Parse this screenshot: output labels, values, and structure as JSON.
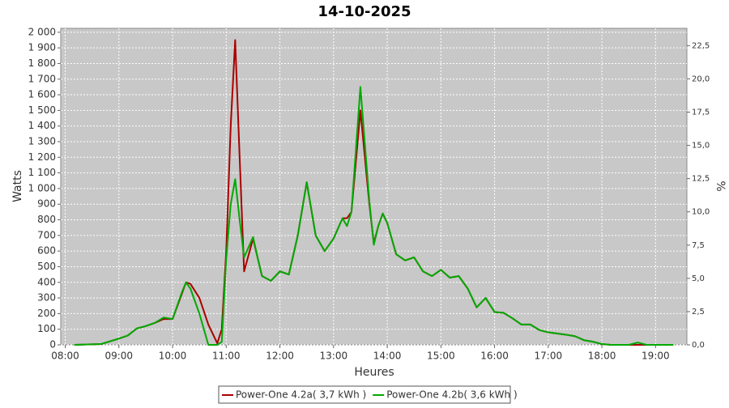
{
  "chart_data": {
    "type": "line",
    "title": "14-10-2025",
    "x_label": "Heures",
    "y_label": "Watts",
    "y2_label": "%",
    "x": [
      "08:10",
      "08:40",
      "09:00",
      "09:10",
      "09:20",
      "09:30",
      "09:40",
      "09:50",
      "10:00",
      "10:10",
      "10:15",
      "10:20",
      "10:30",
      "10:40",
      "10:50",
      "10:55",
      "11:00",
      "11:05",
      "11:10",
      "11:15",
      "11:20",
      "11:30",
      "11:35",
      "11:40",
      "11:50",
      "12:00",
      "12:10",
      "12:20",
      "12:30",
      "12:40",
      "12:50",
      "13:00",
      "13:10",
      "13:15",
      "13:20",
      "13:30",
      "13:40",
      "13:45",
      "13:50",
      "13:55",
      "14:00",
      "14:10",
      "14:20",
      "14:30",
      "14:40",
      "14:50",
      "15:00",
      "15:10",
      "15:20",
      "15:30",
      "15:40",
      "15:50",
      "16:00",
      "16:10",
      "16:20",
      "16:30",
      "16:40",
      "16:50",
      "17:00",
      "17:20",
      "17:30",
      "17:40",
      "17:50",
      "18:00",
      "18:10",
      "18:30",
      "18:40",
      "18:50",
      "19:20"
    ],
    "series": [
      {
        "name": "Power-One 4.2a( 3,7 kWh )",
        "color": "#aa0000",
        "values": [
          0,
          5,
          40,
          60,
          105,
          120,
          140,
          165,
          165,
          320,
          400,
          390,
          300,
          130,
          10,
          100,
          600,
          1400,
          1950,
          1200,
          470,
          680,
          560,
          440,
          410,
          470,
          450,
          700,
          1040,
          700,
          600,
          680,
          810,
          810,
          850,
          1500,
          900,
          650,
          760,
          840,
          780,
          580,
          540,
          560,
          470,
          440,
          480,
          430,
          440,
          360,
          240,
          300,
          210,
          205,
          170,
          130,
          130,
          95,
          80,
          65,
          55,
          30,
          20,
          5,
          0,
          0,
          0,
          0,
          0
        ]
      },
      {
        "name": "Power-One 4.2b( 3,6 kWh )",
        "color": "#00aa00",
        "values": [
          0,
          5,
          40,
          60,
          105,
          120,
          140,
          175,
          165,
          330,
          400,
          360,
          200,
          0,
          0,
          20,
          550,
          900,
          1060,
          800,
          560,
          690,
          560,
          440,
          410,
          470,
          450,
          700,
          1040,
          700,
          600,
          680,
          810,
          760,
          850,
          1650,
          920,
          640,
          760,
          840,
          780,
          580,
          540,
          560,
          470,
          440,
          480,
          430,
          440,
          360,
          240,
          300,
          210,
          205,
          170,
          130,
          130,
          95,
          80,
          65,
          55,
          30,
          20,
          5,
          0,
          0,
          15,
          0,
          0
        ]
      }
    ],
    "xlim": [
      "07:55",
      "19:35"
    ],
    "xticks": [
      "08:00",
      "09:00",
      "10:00",
      "11:00",
      "12:00",
      "13:00",
      "14:00",
      "15:00",
      "16:00",
      "17:00",
      "18:00",
      "19:00"
    ],
    "ylim": [
      0,
      2025
    ],
    "yticks": [
      0,
      100,
      200,
      300,
      400,
      500,
      600,
      700,
      800,
      900,
      {
        "value": 1000,
        "label": "1 000"
      },
      {
        "value": 1100,
        "label": "1 100"
      },
      {
        "value": 1200,
        "label": "1 200"
      },
      {
        "value": 1300,
        "label": "1 300"
      },
      {
        "value": 1400,
        "label": "1 400"
      },
      {
        "value": 1500,
        "label": "1 500"
      },
      {
        "value": 1600,
        "label": "1 600"
      },
      {
        "value": 1700,
        "label": "1 700"
      },
      {
        "value": 1800,
        "label": "1 800"
      },
      {
        "value": 1900,
        "label": "1 900"
      },
      {
        "value": 2000,
        "label": "2 000"
      }
    ],
    "y2lim": [
      0,
      23.8
    ],
    "y2ticks": [
      {
        "value": 0,
        "label": "0,0"
      },
      {
        "value": 2.5,
        "label": "2,5"
      },
      {
        "value": 5,
        "label": "5,0"
      },
      {
        "value": 7.5,
        "label": "7,5"
      },
      {
        "value": 10,
        "label": "10,0"
      },
      {
        "value": 12.5,
        "label": "12,5"
      },
      {
        "value": 15,
        "label": "15,0"
      },
      {
        "value": 17.5,
        "label": "17,5"
      },
      {
        "value": 20,
        "label": "20,0"
      },
      {
        "value": 22.5,
        "label": "22,5"
      }
    ],
    "grid": true
  }
}
